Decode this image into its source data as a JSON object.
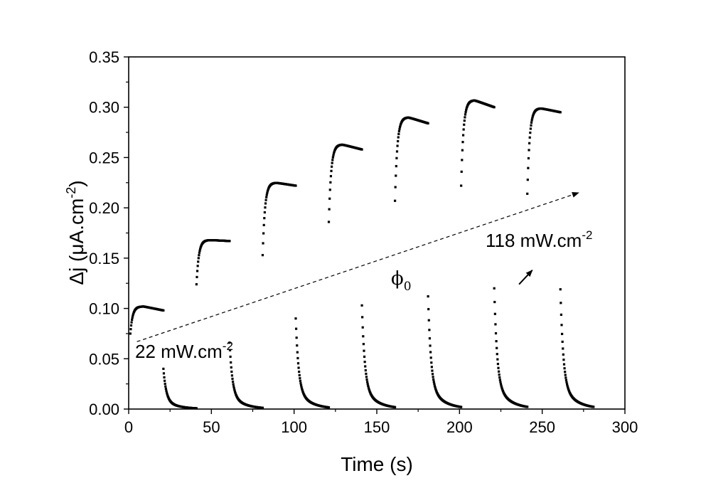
{
  "chart_data": {
    "type": "scatter",
    "title": "",
    "xlabel": "Time (s)",
    "ylabel_parts": {
      "main": "Δj (μA.cm",
      "sup": "-2",
      "close": ")"
    },
    "xlim": [
      0,
      300
    ],
    "ylim": [
      0,
      0.35
    ],
    "xticks": [
      0,
      50,
      100,
      150,
      200,
      250,
      300
    ],
    "yticks": [
      0.0,
      0.05,
      0.1,
      0.15,
      0.2,
      0.25,
      0.3,
      0.35
    ],
    "xtick_labels": [
      "0",
      "50",
      "100",
      "150",
      "200",
      "250",
      "300"
    ],
    "ytick_labels": [
      "0.00",
      "0.05",
      "0.10",
      "0.15",
      "0.20",
      "0.25",
      "0.30",
      "0.35"
    ],
    "grid": false,
    "marker_color": "#000000",
    "cycles": [
      {
        "on": 1,
        "off": 21,
        "start": 0.075,
        "peak": 0.102,
        "end": 0.098,
        "decay_start": 0.04
      },
      {
        "on": 41,
        "off": 61,
        "start": 0.124,
        "peak": 0.168,
        "end": 0.167,
        "decay_start": 0.066
      },
      {
        "on": 81,
        "off": 101,
        "start": 0.153,
        "peak": 0.225,
        "end": 0.222,
        "decay_start": 0.09
      },
      {
        "on": 121,
        "off": 141,
        "start": 0.186,
        "peak": 0.263,
        "end": 0.258,
        "decay_start": 0.103
      },
      {
        "on": 161,
        "off": 181,
        "start": 0.207,
        "peak": 0.29,
        "end": 0.284,
        "decay_start": 0.112
      },
      {
        "on": 201,
        "off": 221,
        "start": 0.222,
        "peak": 0.307,
        "end": 0.3,
        "decay_start": 0.12
      },
      {
        "on": 241,
        "off": 261,
        "start": 0.214,
        "peak": 0.299,
        "end": 0.295,
        "decay_start": 0.119
      }
    ],
    "final_decay_end": 281,
    "annotations": {
      "low_label": {
        "main": "22 mW.cm",
        "sup": "-2"
      },
      "high_label": {
        "main": "118 mW.cm",
        "sup": "-2"
      },
      "phi_label": {
        "main": "ϕ",
        "sub": "0"
      },
      "dashed_arrow": {
        "from": [
          5,
          0.067
        ],
        "to": [
          272,
          0.215
        ]
      },
      "phi_arrow": {
        "from": [
          236,
          0.124
        ],
        "to": [
          244,
          0.138
        ]
      }
    }
  }
}
